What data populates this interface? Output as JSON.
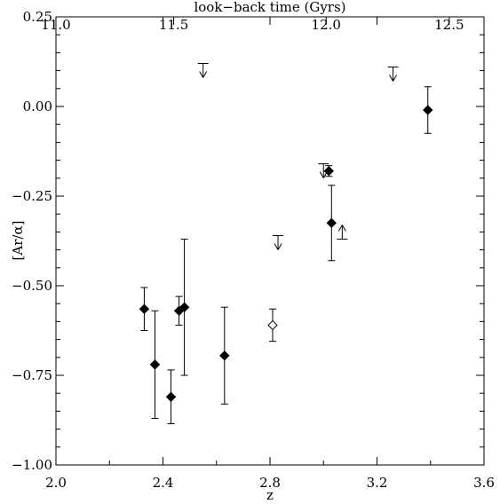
{
  "chart_data": {
    "type": "scatter",
    "title": "",
    "xlabel": "z",
    "ylabel": "[Ar/α]",
    "top_xlabel": "look−back time (Gyrs)",
    "xlim": [
      2.0,
      3.6
    ],
    "ylim": [
      -1.0,
      0.25
    ],
    "x_ticks": [
      2.0,
      2.4,
      2.8,
      3.2,
      3.6
    ],
    "x_tick_labels": [
      "2.0",
      "2.4",
      "2.8",
      "3.2",
      "3.6"
    ],
    "y_ticks": [
      -1.0,
      -0.75,
      -0.5,
      -0.25,
      0.0,
      0.25
    ],
    "y_tick_labels": [
      "−1.00",
      "−0.75",
      "−0.50",
      "−0.25",
      "0.00",
      "0.25"
    ],
    "top_ticks": [
      {
        "z": 2.0,
        "label": "11.0"
      },
      {
        "z": 2.44,
        "label": "11.5"
      },
      {
        "z": 3.01,
        "label": "12.0"
      },
      {
        "z": 3.47,
        "label": "12.5"
      }
    ],
    "grid": false,
    "series": [
      {
        "marker": "filled-diamond",
        "points": [
          {
            "x": 2.33,
            "y": -0.565,
            "yerr_low": 0.06,
            "yerr_high": 0.06
          },
          {
            "x": 2.37,
            "y": -0.72,
            "yerr_low": 0.15,
            "yerr_high": 0.15
          },
          {
            "x": 2.43,
            "y": -0.81,
            "yerr_low": 0.075,
            "yerr_high": 0.075
          },
          {
            "x": 2.46,
            "y": -0.57,
            "yerr_low": 0.04,
            "yerr_high": 0.04
          },
          {
            "x": 2.48,
            "y": -0.56,
            "yerr_low": 0.19,
            "yerr_high": 0.19
          },
          {
            "x": 2.63,
            "y": -0.695,
            "yerr_low": 0.135,
            "yerr_high": 0.135
          },
          {
            "x": 3.02,
            "y": -0.18,
            "yerr_low": 0.015,
            "yerr_high": 0.015
          },
          {
            "x": 3.03,
            "y": -0.325,
            "yerr_low": 0.105,
            "yerr_high": 0.105
          },
          {
            "x": 3.39,
            "y": -0.01,
            "yerr_low": 0.065,
            "yerr_high": 0.065
          }
        ]
      },
      {
        "marker": "open-diamond",
        "points": [
          {
            "x": 2.81,
            "y": -0.61,
            "yerr_low": 0.045,
            "yerr_high": 0.045
          }
        ]
      },
      {
        "marker": "upper-limit",
        "points": [
          {
            "x": 2.55,
            "y": 0.12
          },
          {
            "x": 2.83,
            "y": -0.36
          },
          {
            "x": 3.0,
            "y": -0.16
          },
          {
            "x": 3.26,
            "y": 0.11
          }
        ]
      },
      {
        "marker": "lower-limit",
        "points": [
          {
            "x": 3.07,
            "y": -0.37
          }
        ]
      }
    ]
  }
}
